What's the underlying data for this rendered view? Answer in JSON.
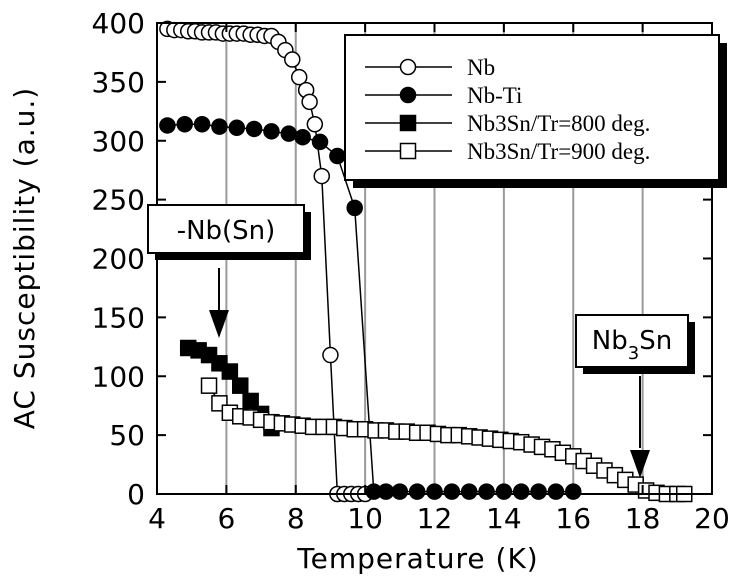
{
  "chart_data": {
    "type": "scatter",
    "xlabel": "Temperature (K)",
    "ylabel": "AC Susceptibility (a.u.)",
    "xlim": [
      4,
      20
    ],
    "ylim": [
      0,
      400
    ],
    "xticks": [
      4,
      6,
      8,
      10,
      12,
      14,
      16,
      18,
      20
    ],
    "yticks": [
      0,
      50,
      100,
      150,
      200,
      250,
      300,
      350,
      400
    ],
    "grid": "vertical",
    "legend_position": "top-right",
    "series": [
      {
        "name": "Nb",
        "marker": "open-circle",
        "x": [
          4.3,
          4.5,
          4.7,
          4.9,
          5.1,
          5.3,
          5.5,
          5.7,
          5.9,
          6.1,
          6.3,
          6.5,
          6.7,
          6.9,
          7.1,
          7.3,
          7.5,
          7.7,
          7.9,
          8.1,
          8.3,
          8.4,
          8.55,
          8.75,
          9.0,
          9.2,
          9.4,
          9.6,
          9.8,
          10.0
        ],
        "y": [
          395,
          394,
          394,
          393,
          393,
          392,
          392,
          392,
          391,
          391,
          391,
          391,
          390,
          390,
          389,
          389,
          384,
          377,
          369,
          354,
          343,
          333,
          314,
          270,
          118,
          0,
          0,
          0,
          0,
          0
        ]
      },
      {
        "name": "Nb-Ti",
        "marker": "filled-circle",
        "x": [
          4.3,
          4.8,
          5.3,
          5.8,
          6.3,
          6.8,
          7.3,
          7.8,
          8.2,
          8.7,
          9.2,
          9.7,
          10.25,
          10.6,
          11.0,
          11.5,
          12.0,
          12.5,
          13.0,
          13.5,
          14.0,
          14.5,
          15.0,
          15.5,
          16.0
        ],
        "y": [
          313,
          314,
          314,
          312,
          311,
          310,
          308,
          306,
          303,
          299,
          287,
          243,
          2,
          2,
          2,
          2,
          2,
          2,
          2,
          2,
          2,
          2,
          2,
          2,
          2
        ]
      },
      {
        "name": "Nb3Sn/Tr=800 deg.",
        "marker": "filled-square",
        "x": [
          4.9,
          5.2,
          5.5,
          5.8,
          6.1,
          6.4,
          6.7,
          7.0,
          7.3
        ],
        "y": [
          124,
          122,
          118,
          111,
          104,
          92,
          79,
          68,
          56
        ]
      },
      {
        "name": "Nb3Sn/Tr=900 deg.",
        "marker": "open-square",
        "x": [
          5.5,
          5.8,
          6.1,
          6.4,
          6.7,
          7.0,
          7.3,
          7.6,
          7.9,
          8.2,
          8.5,
          8.8,
          9.1,
          9.4,
          9.7,
          10.0,
          10.3,
          10.6,
          10.9,
          11.2,
          11.5,
          11.8,
          12.1,
          12.4,
          12.7,
          13.0,
          13.3,
          13.6,
          13.9,
          14.2,
          14.5,
          14.8,
          15.1,
          15.4,
          15.7,
          16.0,
          16.3,
          16.6,
          16.9,
          17.2,
          17.5,
          17.8,
          18.1,
          18.4,
          18.7,
          19.0,
          19.2
        ],
        "y": [
          92,
          77,
          69,
          66,
          65,
          63,
          61,
          60,
          59,
          58,
          57,
          57,
          57,
          56,
          55,
          55,
          54,
          54,
          53,
          53,
          52,
          52,
          51,
          50,
          50,
          49,
          48,
          47,
          46,
          45,
          44,
          42,
          40,
          38,
          35,
          32,
          28,
          24,
          20,
          16,
          12,
          8,
          3,
          1,
          0,
          0,
          0
        ]
      }
    ],
    "annotations": [
      {
        "text": "-Nb(Sn)",
        "arrow_to": [
          6.3,
          135
        ]
      },
      {
        "text_main": "Nb",
        "text_sub": "3",
        "text_tail": "Sn",
        "arrow_to": [
          18.0,
          12
        ]
      }
    ]
  }
}
